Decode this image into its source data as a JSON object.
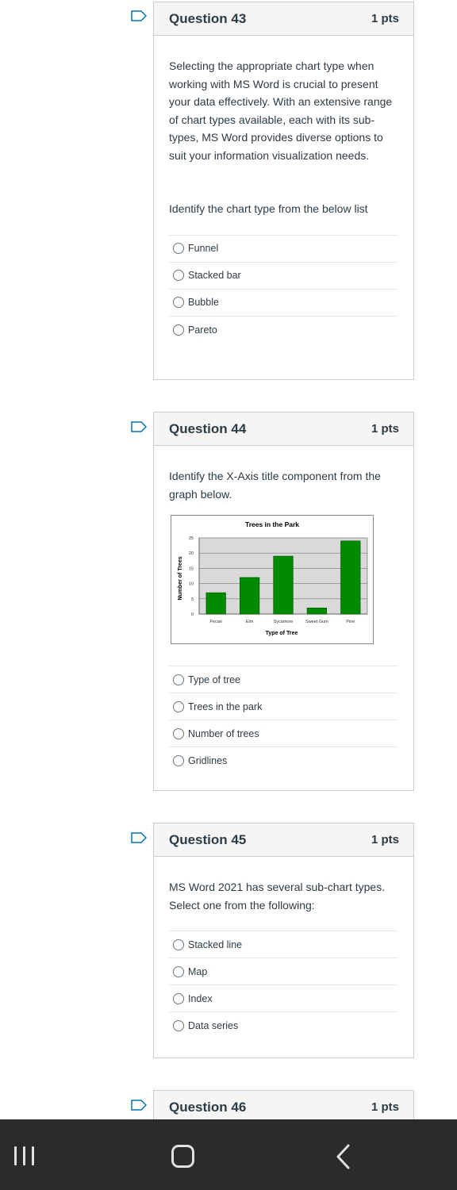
{
  "questions": [
    {
      "title": "Question 43",
      "points": "1 pts",
      "paragraphs": [
        "Selecting the appropriate chart type when working with MS Word is crucial to present your data effectively. With an extensive range of chart types available, each with its sub-types, MS Word provides diverse options to suit your information visualization needs.",
        "Identify the chart type from the below list"
      ],
      "options": [
        "Funnel",
        "Stacked bar",
        "Bubble",
        "Pareto"
      ]
    },
    {
      "title": "Question 44",
      "points": "1 pts",
      "paragraphs": [
        "Identify the X-Axis title component from the graph below."
      ],
      "options": [
        "Type of tree",
        "Trees in the park",
        "Number of trees",
        "Gridlines"
      ]
    },
    {
      "title": "Question 45",
      "points": "1 pts",
      "paragraphs": [
        "MS Word 2021 has several sub-chart types. Select one from the following:"
      ],
      "options": [
        "Stacked line",
        "Map",
        "Index",
        "Data series"
      ]
    },
    {
      "title": "Question 46",
      "points": "1 pts"
    }
  ],
  "chart_data": {
    "type": "bar",
    "title": "Trees in the Park",
    "xlabel": "Type of Tree",
    "ylabel": "Number of Trees",
    "categories": [
      "Pecan",
      "Elm",
      "Sycamore",
      "Sweet Gum",
      "Pine"
    ],
    "values": [
      7,
      12,
      19,
      2,
      24
    ],
    "yticks": [
      "0",
      "5",
      "10",
      "15",
      "20",
      "25"
    ],
    "ylim": [
      0,
      25
    ],
    "grid": true,
    "bar_color": "#008a00",
    "plot_background": "#d9d9d9"
  },
  "colors": {
    "accent": "#2d3b45",
    "flag": "#0374b5",
    "navbar": "#2b2b2b"
  },
  "icons": {
    "flag": "flag-outline-icon",
    "option": "radio-circle-icon",
    "nav_recent": "recent-apps-icon",
    "nav_home": "home-icon",
    "nav_back": "back-icon"
  }
}
